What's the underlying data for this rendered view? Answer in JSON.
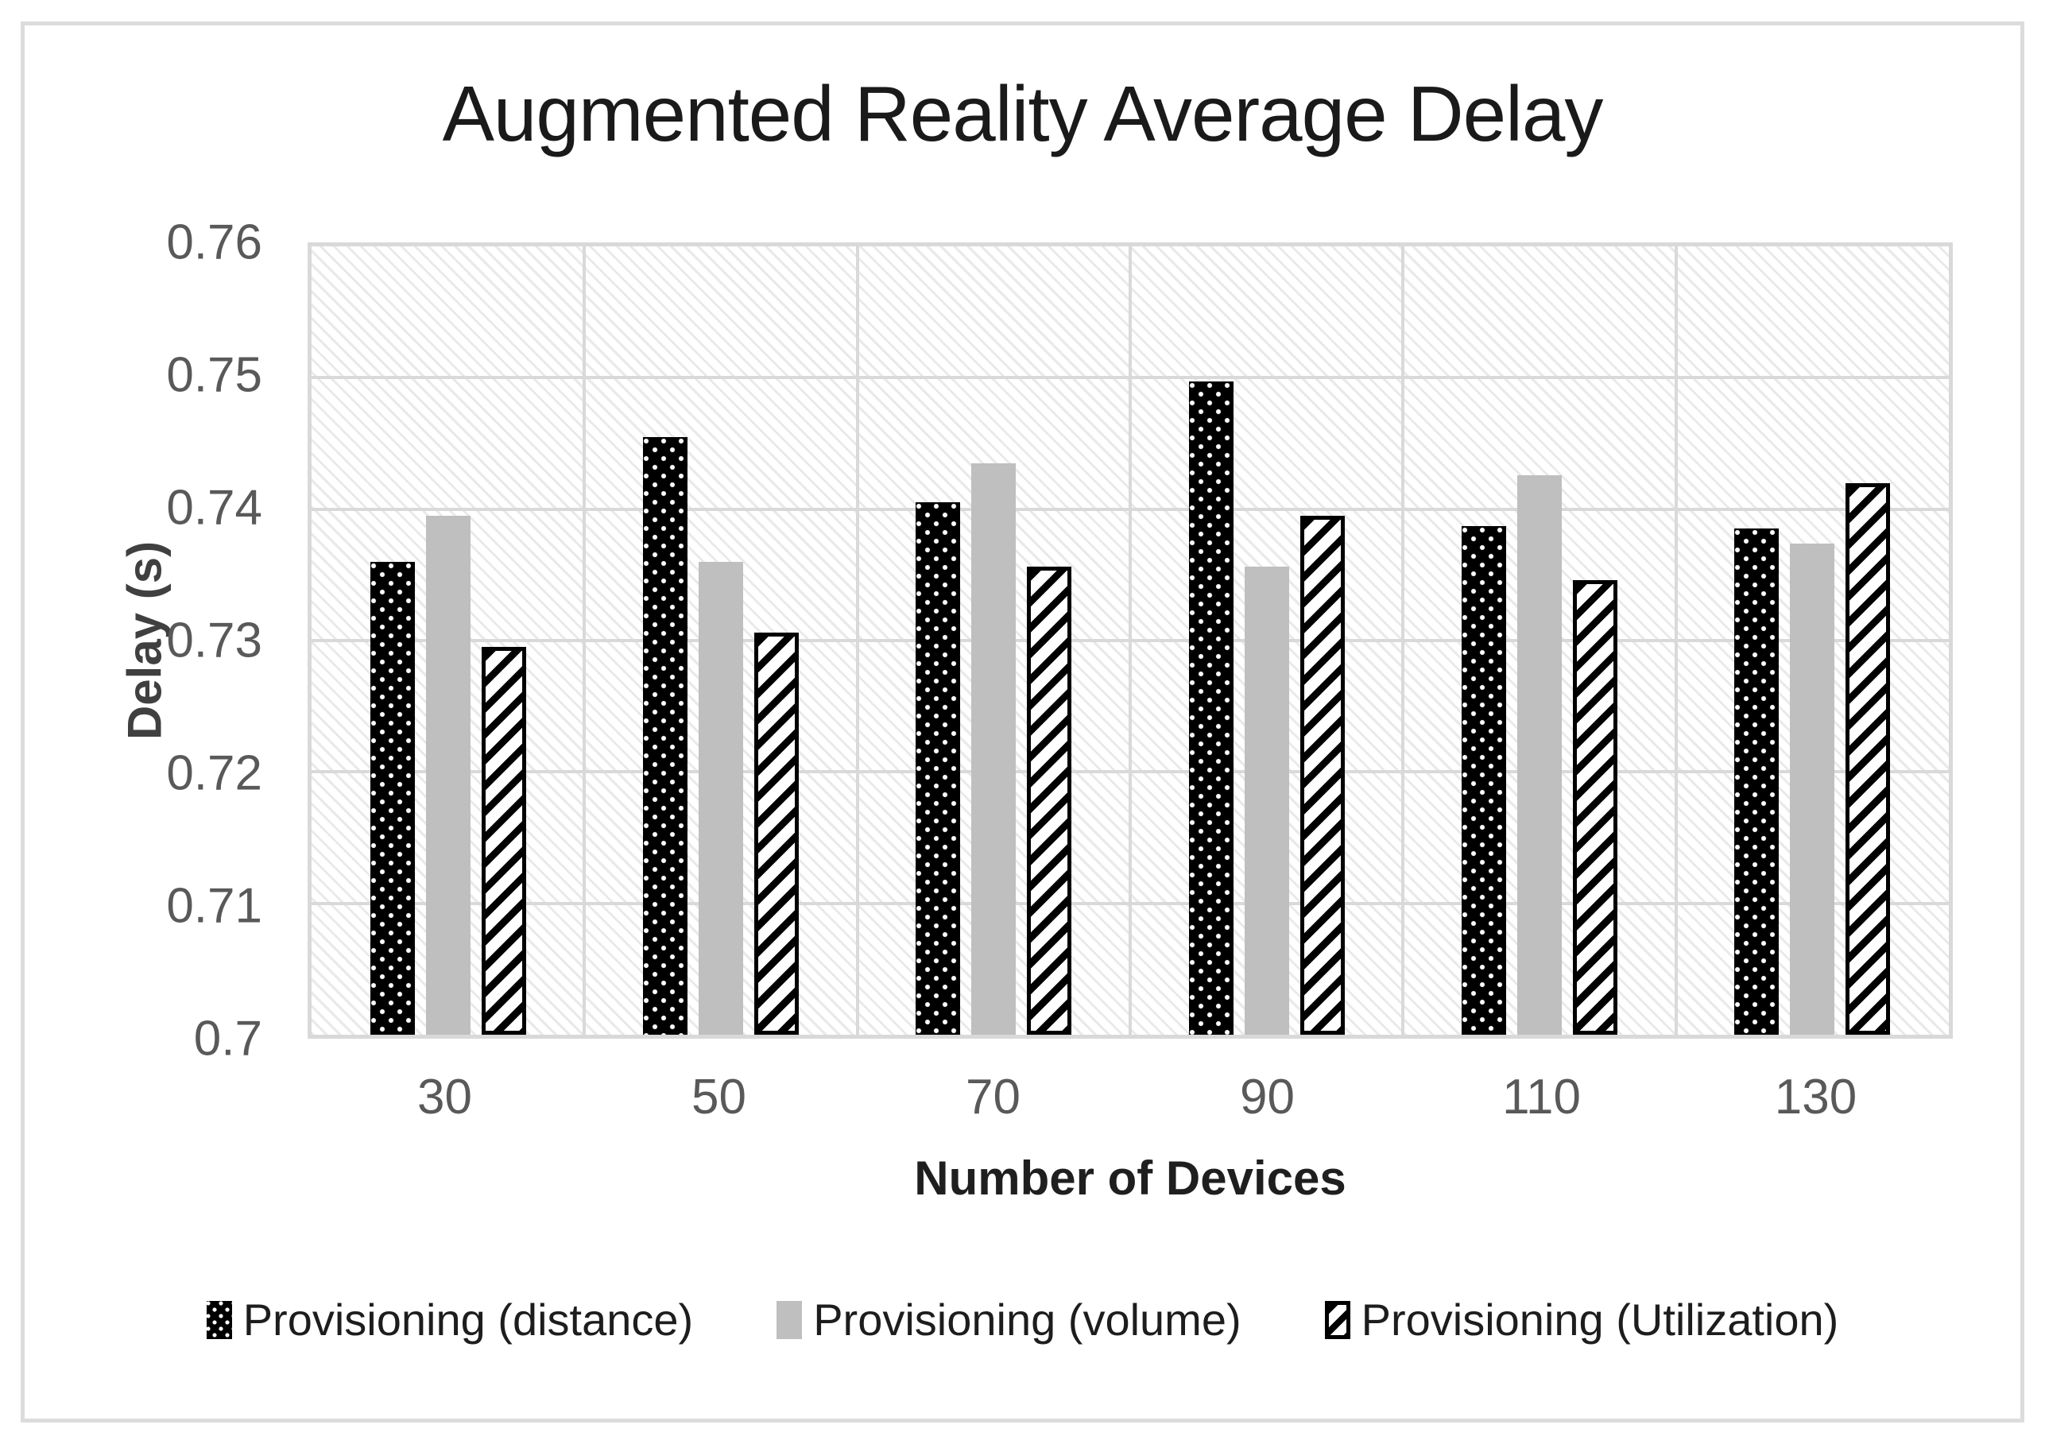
{
  "figure": {
    "title": "Augmented Reality Average Delay"
  },
  "chart_data": {
    "type": "bar",
    "title": "Augmented Reality Average Delay",
    "xlabel": "Number of Devices",
    "ylabel": "Delay (s)",
    "categories": [
      "30",
      "50",
      "70",
      "90",
      "110",
      "130"
    ],
    "series": [
      {
        "name": "Provisioning (distance)",
        "pattern": "black-dotted",
        "color": "#000000",
        "values": [
          0.736,
          0.7455,
          0.7405,
          0.7497,
          0.7387,
          0.7385
        ]
      },
      {
        "name": "Provisioning (volume)",
        "pattern": "solid-gray",
        "color": "#BFBFBF",
        "values": [
          0.7395,
          0.736,
          0.7435,
          0.7356,
          0.7426,
          0.7374
        ]
      },
      {
        "name": "Provisioning (Utilization)",
        "pattern": "diagonal-stripes",
        "color": "#000000",
        "values": [
          0.7295,
          0.7306,
          0.7356,
          0.7395,
          0.7346,
          0.742
        ]
      }
    ],
    "ylim": [
      0.7,
      0.76
    ],
    "yticks": [
      0.7,
      0.71,
      0.72,
      0.73,
      0.74,
      0.75,
      0.76
    ],
    "ytick_labels": [
      "0.7",
      "0.71",
      "0.72",
      "0.73",
      "0.74",
      "0.75",
      "0.76"
    ],
    "grid": true,
    "grid_color": "#D9D9D9",
    "plot_background_pattern": "light-diagonal-hatch",
    "legend_position": "bottom"
  }
}
